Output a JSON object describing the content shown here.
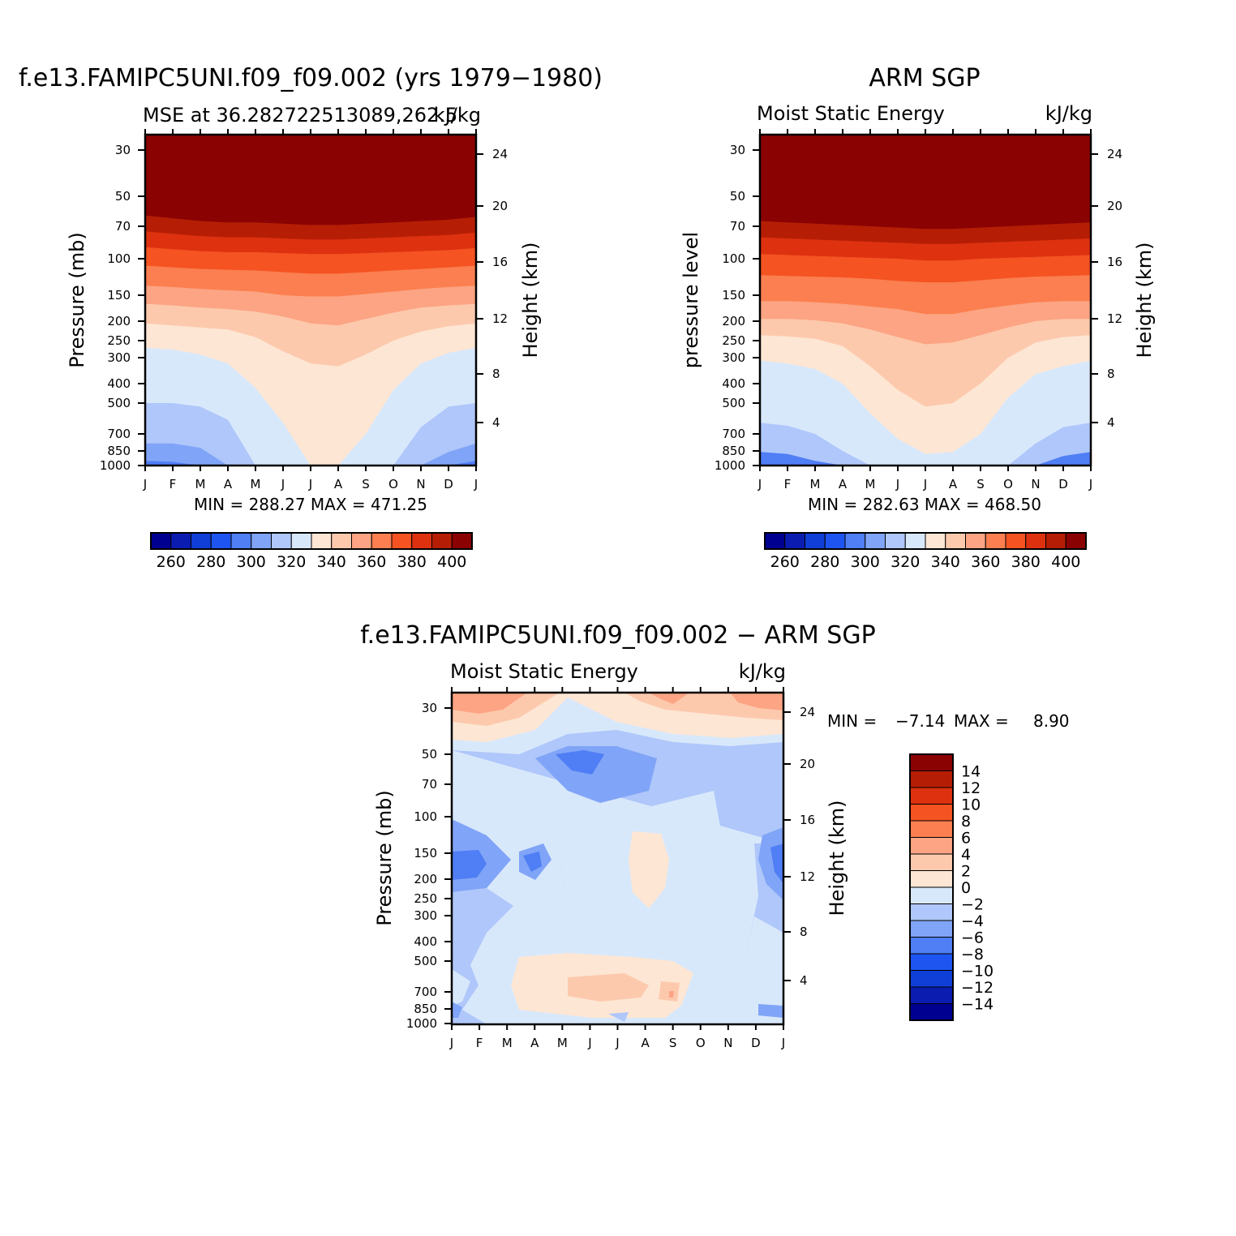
{
  "colors": {
    "abs_scale": [
      "#000090",
      "#0a1db0",
      "#0f3fd6",
      "#1e55f0",
      "#4f7ef5",
      "#80a4f7",
      "#afc7fa",
      "#d8e8fb",
      "#fde6d4",
      "#fdc9ad",
      "#fca483",
      "#fb7f50",
      "#f55322",
      "#dd3110",
      "#b51e05",
      "#8a0202"
    ],
    "diff_scale": [
      "#000090",
      "#0a1db0",
      "#0f3fd6",
      "#1e55f0",
      "#4f7ef5",
      "#80a4f7",
      "#afc7fa",
      "#d8e8fb",
      "#fde6d4",
      "#fdc9ad",
      "#fca483",
      "#fb7f50",
      "#f55322",
      "#dd3110",
      "#b51e05",
      "#8a0202"
    ]
  },
  "chart_data": [
    {
      "id": "model",
      "type": "heatmap",
      "title": "f.e13.FAMIPC5UNI.f09_f09.002 (yrs 1979−1980)",
      "subtitle_left": "MSE at 36.282722513089,262.5",
      "subtitle_right": "kJ/kg",
      "ylabel": "Pressure (mb)",
      "ylabel_right": "Height (km)",
      "x_ticks": [
        "J",
        "F",
        "M",
        "A",
        "M",
        "J",
        "J",
        "A",
        "S",
        "O",
        "N",
        "D",
        "J"
      ],
      "y_ticks": [
        "30",
        "50",
        "70",
        "100",
        "150",
        "200",
        "250",
        "300",
        "400",
        "500",
        "700",
        "850",
        "1000"
      ],
      "y_ticks_right": [
        "24",
        "20",
        "16",
        "12",
        "8",
        "4"
      ],
      "minmax_text": "MIN = 288.27 MAX = 471.25",
      "colorbar_labels": [
        "260",
        "280",
        "300",
        "320",
        "340",
        "360",
        "380",
        "400"
      ],
      "colorbar_levels": [
        250,
        255,
        260,
        265,
        270,
        275,
        280,
        285,
        290,
        295,
        300,
        305,
        310,
        315,
        320,
        325,
        330,
        335,
        340,
        345,
        350,
        355,
        360,
        365,
        370,
        375,
        380,
        385,
        390,
        395,
        400,
        405
      ],
      "contour_levels": [
        250,
        260,
        270,
        280,
        290,
        300,
        310,
        320,
        330,
        340,
        350,
        360,
        370,
        380,
        390,
        400
      ],
      "boundaries": [
        {
          "level": "400+",
          "p": [
            62,
            64,
            66,
            67,
            67,
            68,
            69,
            69,
            68,
            67,
            66,
            65,
            63
          ]
        },
        {
          "level": "390",
          "p": [
            74,
            76,
            78,
            79,
            79,
            80,
            81,
            81,
            80,
            79,
            78,
            77,
            75
          ]
        },
        {
          "level": "380",
          "p": [
            88,
            90,
            92,
            93,
            93,
            94,
            95,
            95,
            94,
            93,
            92,
            91,
            89
          ]
        },
        {
          "level": "370",
          "p": [
            108,
            110,
            112,
            113,
            114,
            116,
            118,
            118,
            116,
            114,
            112,
            110,
            108
          ]
        },
        {
          "level": "360",
          "p": [
            135,
            137,
            140,
            142,
            144,
            150,
            152,
            152,
            148,
            144,
            140,
            137,
            135
          ]
        },
        {
          "level": "350",
          "p": [
            165,
            168,
            172,
            175,
            180,
            190,
            205,
            210,
            195,
            182,
            172,
            168,
            165
          ]
        },
        {
          "level": "340",
          "p": [
            205,
            210,
            215,
            220,
            240,
            280,
            320,
            330,
            290,
            250,
            225,
            212,
            205
          ]
        },
        {
          "level": "330",
          "p": [
            270,
            275,
            290,
            320,
            420,
            620,
            1000,
            1000,
            700,
            430,
            320,
            285,
            270
          ]
        },
        {
          "level": "320",
          "p": [
            500,
            500,
            520,
            600,
            1000,
            1000,
            1000,
            1000,
            1000,
            1000,
            650,
            520,
            500
          ]
        },
        {
          "level": "310",
          "p": [
            780,
            780,
            820,
            1000,
            1000,
            1000,
            1000,
            1000,
            1000,
            1000,
            1000,
            860,
            780
          ]
        },
        {
          "level": "300",
          "p": [
            950,
            960,
            1000,
            1000,
            1000,
            1000,
            1000,
            1000,
            1000,
            1000,
            1000,
            1000,
            950
          ]
        }
      ]
    },
    {
      "id": "obs",
      "type": "heatmap",
      "title": "ARM SGP",
      "subtitle_left": "Moist Static Energy",
      "subtitle_right": "kJ/kg",
      "ylabel": "pressure level",
      "ylabel_right": "Height (km)",
      "x_ticks": [
        "J",
        "F",
        "M",
        "A",
        "M",
        "J",
        "J",
        "A",
        "S",
        "O",
        "N",
        "D",
        "J"
      ],
      "y_ticks": [
        "30",
        "50",
        "70",
        "100",
        "150",
        "200",
        "250",
        "300",
        "400",
        "500",
        "700",
        "850",
        "1000"
      ],
      "y_ticks_right": [
        "24",
        "20",
        "16",
        "12",
        "8",
        "4"
      ],
      "minmax_text": "MIN = 282.63 MAX = 468.50",
      "colorbar_labels": [
        "260",
        "280",
        "300",
        "320",
        "340",
        "360",
        "380",
        "400"
      ],
      "boundaries": [
        {
          "level": "400+",
          "p": [
            66,
            67,
            68,
            69,
            70,
            71,
            72,
            72,
            71,
            70,
            69,
            68,
            67
          ]
        },
        {
          "level": "390",
          "p": [
            79,
            80,
            81,
            82,
            83,
            84,
            85,
            85,
            84,
            83,
            82,
            81,
            80
          ]
        },
        {
          "level": "380",
          "p": [
            95,
            96,
            97,
            98,
            99,
            100,
            102,
            102,
            100,
            99,
            98,
            97,
            96
          ]
        },
        {
          "level": "370",
          "p": [
            120,
            121,
            122,
            123,
            125,
            128,
            130,
            130,
            127,
            124,
            122,
            121,
            120
          ]
        },
        {
          "level": "360",
          "p": [
            160,
            160,
            162,
            165,
            170,
            175,
            185,
            185,
            175,
            168,
            162,
            160,
            160
          ]
        },
        {
          "level": "350",
          "p": [
            195,
            195,
            198,
            205,
            220,
            240,
            260,
            255,
            235,
            215,
            200,
            195,
            195
          ]
        },
        {
          "level": "340",
          "p": [
            235,
            238,
            245,
            265,
            330,
            430,
            520,
            500,
            400,
            300,
            255,
            240,
            235
          ]
        },
        {
          "level": "330",
          "p": [
            310,
            320,
            340,
            400,
            560,
            740,
            880,
            860,
            700,
            470,
            360,
            330,
            310
          ]
        },
        {
          "level": "320",
          "p": [
            620,
            640,
            700,
            850,
            1000,
            1000,
            1000,
            1000,
            1000,
            1000,
            780,
            650,
            620
          ]
        },
        {
          "level": "310",
          "p": [
            860,
            880,
            950,
            1000,
            1000,
            1000,
            1000,
            1000,
            1000,
            1000,
            1000,
            900,
            860
          ]
        }
      ]
    },
    {
      "id": "diff",
      "type": "heatmap",
      "title": "f.e13.FAMIPC5UNI.f09_f09.002 − ARM SGP",
      "subtitle_left": "Moist Static Energy",
      "subtitle_right": "kJ/kg",
      "ylabel": "Pressure (mb)",
      "ylabel_right": "Height (km)",
      "x_ticks": [
        "J",
        "F",
        "M",
        "A",
        "M",
        "J",
        "J",
        "A",
        "S",
        "O",
        "N",
        "D",
        "J"
      ],
      "y_ticks": [
        "30",
        "50",
        "70",
        "100",
        "150",
        "200",
        "250",
        "300",
        "400",
        "500",
        "700",
        "850",
        "1000"
      ],
      "y_ticks_right": [
        "24",
        "20",
        "16",
        "12",
        "8",
        "4"
      ],
      "minmax_label": "MIN =",
      "min_value": "−7.14",
      "max_label": "MAX =",
      "max_value": "8.90",
      "colorbar_labels": [
        "14",
        "12",
        "10",
        "8",
        "6",
        "4",
        "2",
        "0",
        "−2",
        "−4",
        "−6",
        "−8",
        "−10",
        "−12",
        "−14"
      ]
    }
  ]
}
